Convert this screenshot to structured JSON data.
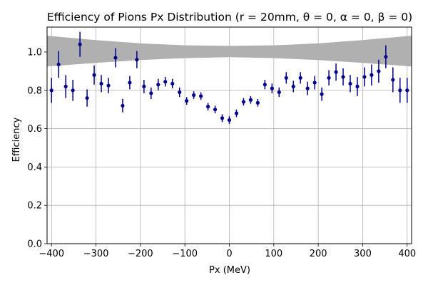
{
  "chart_data": {
    "type": "scatter",
    "title": "Efficiency of Pions Px Distribution (r = 20mm, θ = 0, α = 0, β = 0)",
    "xlabel": "Px (MeV)",
    "ylabel": "Efficiency",
    "xlim": [
      -410,
      410
    ],
    "ylim": [
      0.0,
      1.13
    ],
    "xticks": [
      -400,
      -300,
      -200,
      -100,
      0,
      100,
      200,
      300,
      400
    ],
    "yticks": [
      0.0,
      0.2,
      0.4,
      0.6,
      0.8,
      1.0
    ],
    "grid": true,
    "colors": {
      "points": "#00008b",
      "band": "#b0b0b0",
      "grid": "#b0b0b0"
    },
    "band": {
      "x": [
        -410,
        -300,
        -200,
        -100,
        0,
        100,
        200,
        300,
        410
      ],
      "lower": [
        0.925,
        0.943,
        0.958,
        0.968,
        0.973,
        0.968,
        0.958,
        0.943,
        0.925
      ],
      "upper": [
        1.085,
        1.062,
        1.045,
        1.035,
        1.032,
        1.035,
        1.045,
        1.062,
        1.085
      ]
    },
    "series": [
      {
        "x": [
          -400,
          -384,
          -368,
          -352,
          -336,
          -320,
          -304,
          -288,
          -272,
          -256,
          -240,
          -224,
          -208,
          -192,
          -176,
          -160,
          -144,
          -128,
          -112,
          -96,
          -80,
          -64,
          -48,
          -32,
          -16,
          0,
          16,
          32,
          48,
          64,
          80,
          96,
          112,
          128,
          144,
          160,
          176,
          192,
          208,
          224,
          240,
          256,
          272,
          288,
          304,
          320,
          336,
          352,
          368,
          384,
          400
        ],
        "y": [
          0.8,
          0.935,
          0.82,
          0.8,
          1.04,
          0.76,
          0.88,
          0.835,
          0.825,
          0.97,
          0.72,
          0.84,
          0.96,
          0.82,
          0.785,
          0.83,
          0.845,
          0.835,
          0.79,
          0.745,
          0.775,
          0.77,
          0.715,
          0.7,
          0.655,
          0.645,
          0.68,
          0.74,
          0.75,
          0.735,
          0.83,
          0.81,
          0.79,
          0.865,
          0.82,
          0.865,
          0.81,
          0.84,
          0.78,
          0.865,
          0.895,
          0.87,
          0.835,
          0.82,
          0.87,
          0.88,
          0.9,
          0.975,
          0.855,
          0.8,
          0.8
        ],
        "yerr": [
          0.065,
          0.07,
          0.06,
          0.055,
          0.065,
          0.045,
          0.05,
          0.045,
          0.04,
          0.05,
          0.035,
          0.035,
          0.045,
          0.035,
          0.03,
          0.03,
          0.025,
          0.025,
          0.025,
          0.02,
          0.02,
          0.02,
          0.02,
          0.02,
          0.02,
          0.02,
          0.02,
          0.02,
          0.02,
          0.02,
          0.025,
          0.025,
          0.025,
          0.03,
          0.03,
          0.03,
          0.035,
          0.035,
          0.035,
          0.04,
          0.045,
          0.045,
          0.045,
          0.05,
          0.05,
          0.055,
          0.06,
          0.06,
          0.065,
          0.065,
          0.065
        ]
      }
    ]
  }
}
